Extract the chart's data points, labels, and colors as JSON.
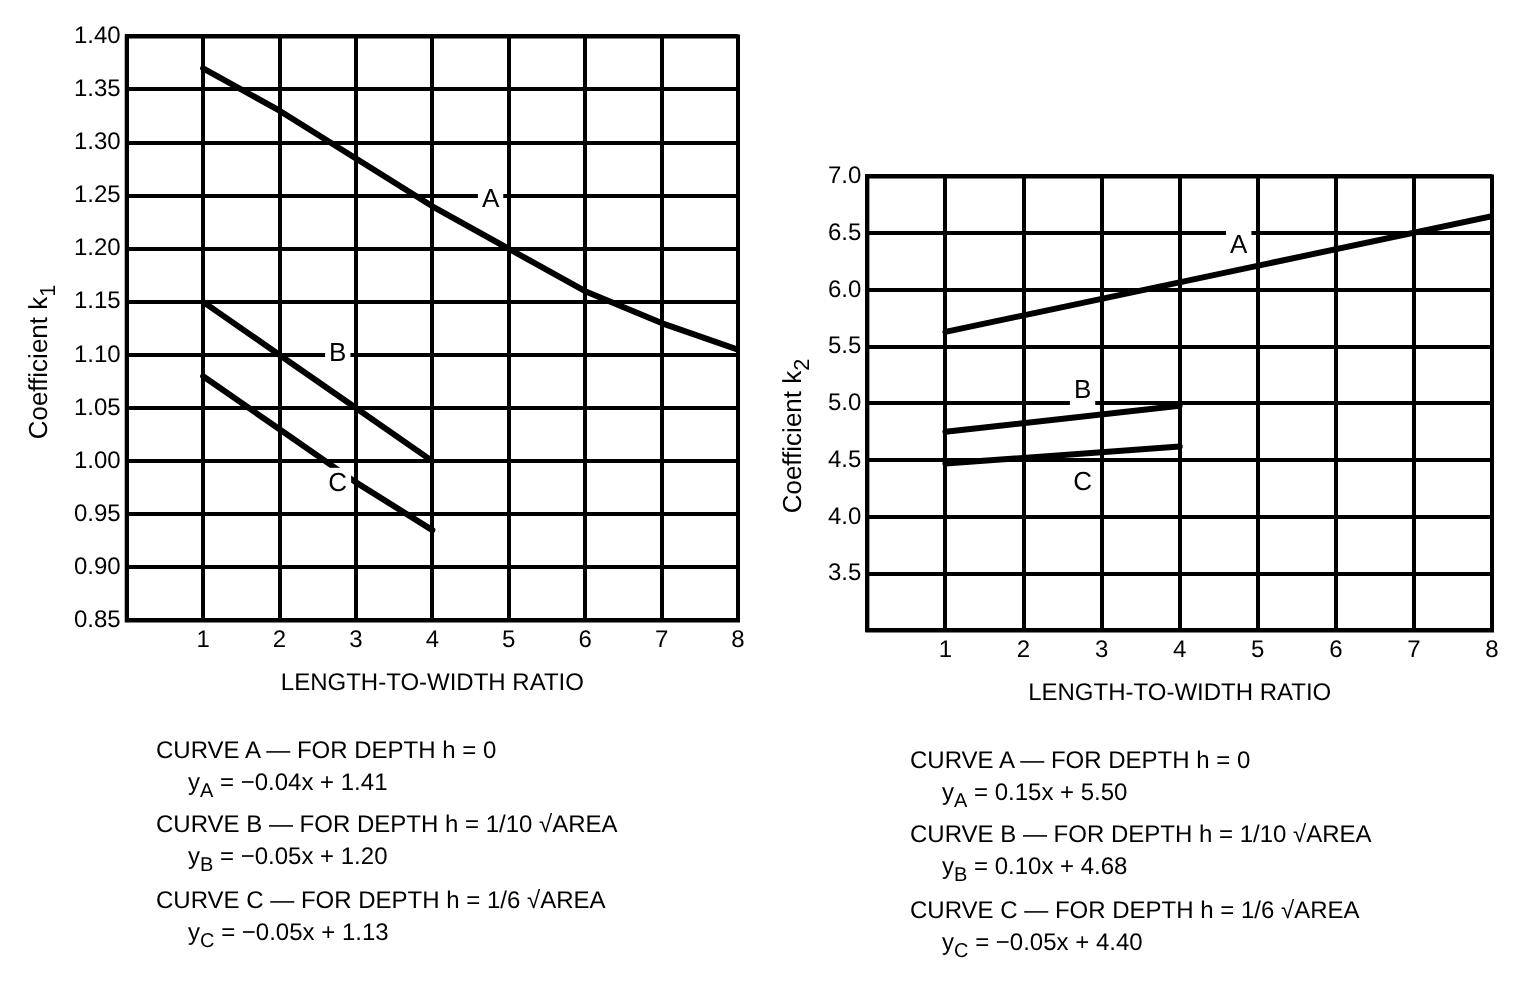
{
  "chart_data": [
    {
      "type": "line",
      "xlabel": "LENGTH-TO-WIDTH RATIO",
      "ylabel": "Coefficient k$_{1}$",
      "xlim": [
        0,
        8
      ],
      "xticks": [
        1,
        2,
        3,
        4,
        5,
        6,
        7,
        8
      ],
      "ylim": [
        0.85,
        1.4
      ],
      "yticks": [
        {
          "value": 0.85,
          "label": "0.85"
        },
        {
          "value": 0.9,
          "label": "0.90"
        },
        {
          "value": 0.95,
          "label": "0.95"
        },
        {
          "value": 1.0,
          "label": "1.00"
        },
        {
          "value": 1.05,
          "label": "1.05"
        },
        {
          "value": 1.1,
          "label": "1.10"
        },
        {
          "value": 1.15,
          "label": "1.15"
        },
        {
          "value": 1.2,
          "label": "1.20"
        },
        {
          "value": 1.25,
          "label": "1.25"
        },
        {
          "value": 1.3,
          "label": "1.30"
        },
        {
          "value": 1.35,
          "label": "1.35"
        },
        {
          "value": 1.4,
          "label": "1.40"
        }
      ],
      "grid": true,
      "marker": "none",
      "line_style": "solid",
      "series": [
        {
          "name": "A",
          "color": "#000000",
          "x": [
            1,
            2,
            3,
            4,
            5,
            6,
            7,
            8
          ],
          "values": [
            1.37,
            1.33,
            1.285,
            1.24,
            1.2,
            1.16,
            1.13,
            1.105
          ]
        },
        {
          "name": "B",
          "color": "#000000",
          "x": [
            1,
            2,
            3,
            4
          ],
          "values": [
            1.15,
            1.1,
            1.05,
            1.0
          ]
        },
        {
          "name": "C",
          "color": "#000000",
          "x": [
            1,
            2,
            3,
            4
          ],
          "values": [
            1.08,
            1.03,
            0.98,
            0.935
          ]
        }
      ],
      "annotations": [
        "CURVE A —  FOR DEPTH h  =  0",
        "y$_{A}$  =  −0.04x + 1.41",
        "CURVE B —  FOR DEPTH h  =  1/10 √AREA",
        "y$_{B}$  =  −0.05x + 1.20",
        "CURVE C —  FOR DEPTH h  =  1/6  √AREA",
        "y$_{C}$  =  −0.05x + 1.13"
      ]
    },
    {
      "type": "line",
      "xlabel": "LENGTH-TO-WIDTH RATIO",
      "ylabel": "Coefficient k$_{2}$",
      "xlim": [
        0,
        8
      ],
      "xticks": [
        1,
        2,
        3,
        4,
        5,
        6,
        7,
        8
      ],
      "ylim": [
        3.0,
        7.0
      ],
      "yticks": [
        {
          "value": 3.5,
          "label": "3.5"
        },
        {
          "value": 4,
          "label": "4.0"
        },
        {
          "value": 4.5,
          "label": "4.5"
        },
        {
          "value": 5,
          "label": "5.0"
        },
        {
          "value": 5.5,
          "label": "5.5"
        },
        {
          "value": 6,
          "label": "6.0"
        },
        {
          "value": 6.5,
          "label": "6.5"
        },
        {
          "value": 7,
          "label": "7.0"
        }
      ],
      "grid": true,
      "marker": "none",
      "line_style": "solid",
      "series": [
        {
          "name": "A",
          "color": "#000000",
          "x": [
            1,
            8
          ],
          "values": [
            5.63,
            6.65
          ]
        },
        {
          "name": "B",
          "color": "#000000",
          "x": [
            1,
            4
          ],
          "values": [
            4.75,
            4.98
          ]
        },
        {
          "name": "C",
          "color": "#000000",
          "x": [
            1,
            4
          ],
          "values": [
            4.47,
            4.62
          ]
        }
      ],
      "annotations": [
        "CURVE A —  FOR DEPTH h  =  0",
        "y$_{A}$  =  0.15x + 5.50",
        "CURVE B —  FOR DEPTH h  =  1/10 √AREA",
        "y$_{B}$  =  0.10x + 4.68",
        "CURVE C —  FOR DEPTH h  =  1/6  √AREA",
        "y$_{C}$  =  −0.05x + 4.40"
      ]
    }
  ]
}
